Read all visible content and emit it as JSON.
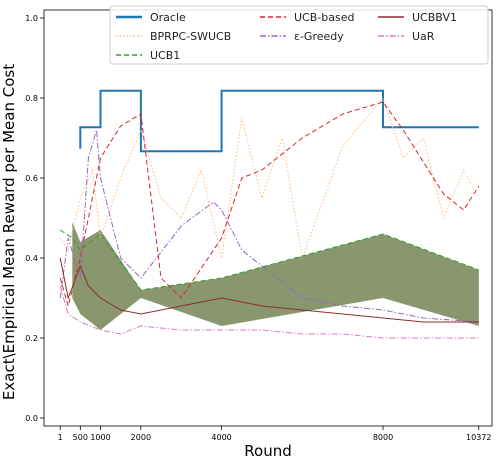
{
  "chart_data": {
    "type": "line",
    "title": "",
    "xlabel": "Round",
    "ylabel": "Exact\\Empirical Mean Reward per Mean Cost",
    "xlim": [
      -400,
      10700
    ],
    "ylim": [
      -0.02,
      1.02
    ],
    "x_ticks": [
      1,
      500,
      1000,
      2000,
      4000,
      8000,
      10372
    ],
    "x_tick_labels": [
      "1",
      "500",
      "1000",
      "2000",
      "4000",
      "8000",
      "10372"
    ],
    "y_ticks": [
      0.0,
      0.2,
      0.4,
      0.6,
      0.8,
      1.0
    ],
    "y_tick_labels": [
      "0.0",
      "0.2",
      "0.4",
      "0.6",
      "0.8",
      "1.0"
    ],
    "grid": false,
    "legend_position": "top",
    "series": [
      {
        "name": "Oracle",
        "color": "#1f77b4",
        "style": "solid",
        "width": 2,
        "x": [
          500,
          500,
          1000,
          1000,
          2000,
          2000,
          4000,
          4000,
          8000,
          8000,
          10372
        ],
        "y": [
          0.673,
          0.727,
          0.727,
          0.818,
          0.818,
          0.667,
          0.667,
          0.818,
          0.818,
          0.727,
          0.727
        ]
      },
      {
        "name": "BPRPC-SWUCB",
        "color": "#ffbb78",
        "style": "dotted",
        "width": 1,
        "x": [
          1,
          200,
          500,
          800,
          1000,
          1500,
          2000,
          2500,
          3000,
          3500,
          4000,
          4500,
          5000,
          5500,
          6000,
          7000,
          8000,
          8500,
          9000,
          9500,
          10000,
          10372
        ],
        "y": [
          0.45,
          0.42,
          0.55,
          0.62,
          0.45,
          0.6,
          0.72,
          0.55,
          0.5,
          0.62,
          0.4,
          0.75,
          0.55,
          0.7,
          0.4,
          0.68,
          0.8,
          0.65,
          0.7,
          0.5,
          0.62,
          0.55
        ]
      },
      {
        "name": "UCB1",
        "color": "#2ca02c",
        "style": "dashed",
        "width": 1,
        "x": [
          1,
          300,
          500,
          1000,
          2000,
          4000,
          8000,
          10372
        ],
        "y": [
          0.47,
          0.45,
          0.42,
          0.46,
          0.32,
          0.35,
          0.46,
          0.37
        ]
      },
      {
        "name": "UCB-based",
        "color": "#d62728",
        "style": "dashed",
        "width": 1,
        "x": [
          1,
          200,
          500,
          800,
          1000,
          1500,
          2000,
          2500,
          3000,
          4000,
          4500,
          5000,
          6000,
          7000,
          8000,
          8500,
          9000,
          9500,
          10000,
          10372
        ],
        "y": [
          0.35,
          0.28,
          0.4,
          0.55,
          0.65,
          0.73,
          0.76,
          0.35,
          0.3,
          0.45,
          0.6,
          0.62,
          0.7,
          0.76,
          0.79,
          0.72,
          0.64,
          0.56,
          0.52,
          0.58
        ]
      },
      {
        "name": "ε-Greedy",
        "color": "#9467bd",
        "style": "dashdot",
        "width": 1,
        "x": [
          1,
          200,
          500,
          700,
          900,
          1000,
          1500,
          2000,
          3000,
          3800,
          4000,
          4500,
          5000,
          5500,
          6000,
          7000,
          8000,
          9000,
          10372
        ],
        "y": [
          0.3,
          0.45,
          0.35,
          0.65,
          0.72,
          0.6,
          0.4,
          0.35,
          0.48,
          0.54,
          0.52,
          0.42,
          0.38,
          0.34,
          0.3,
          0.28,
          0.27,
          0.25,
          0.24
        ]
      },
      {
        "name": "UCBBV1",
        "color": "#8c2d2d",
        "style": "solid",
        "width": 1,
        "x": [
          1,
          200,
          500,
          700,
          1000,
          1500,
          2000,
          2500,
          3000,
          3500,
          4000,
          5000,
          6000,
          7000,
          8000,
          9000,
          10372
        ],
        "y": [
          0.4,
          0.3,
          0.38,
          0.33,
          0.3,
          0.27,
          0.26,
          0.27,
          0.28,
          0.29,
          0.3,
          0.28,
          0.27,
          0.26,
          0.25,
          0.24,
          0.24
        ]
      },
      {
        "name": "UaR",
        "color": "#e377c2",
        "style": "dashdot",
        "width": 1,
        "x": [
          1,
          200,
          500,
          1000,
          1500,
          2000,
          3000,
          4000,
          5000,
          6000,
          7000,
          8000,
          9000,
          10372
        ],
        "y": [
          0.33,
          0.26,
          0.24,
          0.22,
          0.21,
          0.23,
          0.22,
          0.22,
          0.22,
          0.21,
          0.21,
          0.2,
          0.2,
          0.2
        ]
      }
    ],
    "band": {
      "series": "UCB1",
      "fill_color": "#6b7c4a",
      "x": [
        300,
        500,
        1000,
        2000,
        4000,
        8000,
        10372
      ],
      "upper": [
        0.49,
        0.44,
        0.47,
        0.32,
        0.35,
        0.46,
        0.37
      ],
      "lower": [
        0.3,
        0.26,
        0.22,
        0.3,
        0.23,
        0.3,
        0.23
      ]
    }
  }
}
